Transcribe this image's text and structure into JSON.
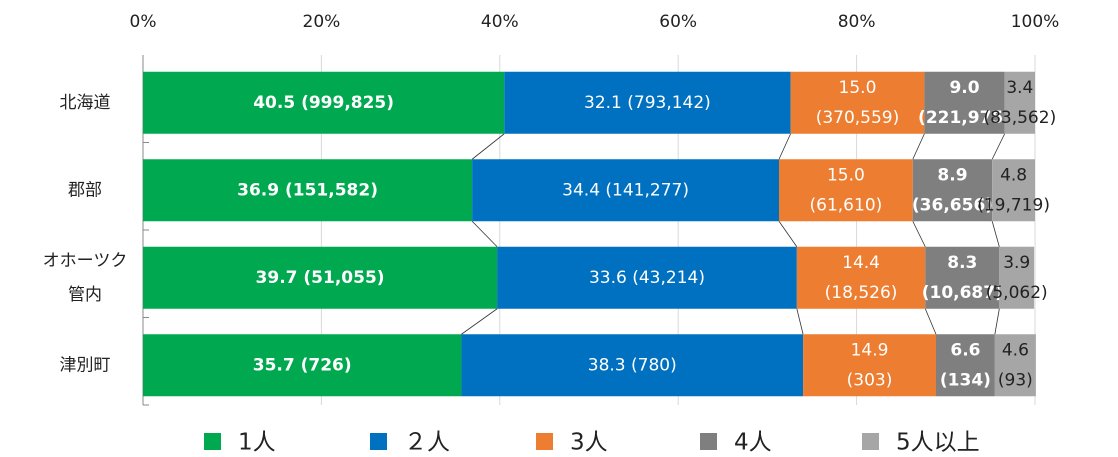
{
  "chart_data": {
    "type": "stacked-bar-horizontal",
    "categories": [
      "北海道",
      "郡部",
      "オホーツク管内",
      "津別町"
    ],
    "series": [
      {
        "name": "1人",
        "color": "#00a94f",
        "values": [
          40.5,
          36.9,
          39.7,
          35.7
        ],
        "value_labels": [
          "40.5 (999,825)",
          "36.9 (151,582)",
          "39.7 (51,055)",
          "35.7 (726)"
        ]
      },
      {
        "name": "２人",
        "color": "#0070c0",
        "values": [
          32.1,
          34.4,
          33.6,
          38.3
        ],
        "value_labels": [
          "32.1 (793,142)",
          "34.4 (141,277)",
          "33.6 (43,214)",
          "38.3 (780)"
        ]
      },
      {
        "name": "3人",
        "color": "#ed7d31",
        "values": [
          15.0,
          15.0,
          14.4,
          14.9
        ],
        "value_labels": [
          "15.0 (370,559)",
          "15.0 (61,610)",
          "14.4 (18,526)",
          "14.9 (303)"
        ]
      },
      {
        "name": "4人",
        "color": "#7f7f7f",
        "values": [
          9.0,
          8.9,
          8.3,
          6.6
        ],
        "value_labels": [
          "9.0 (221,975)",
          "8.9 (36,656)",
          "8.3 (10,687)",
          "6.6 (134)"
        ]
      },
      {
        "name": "5人以上",
        "color": "#a6a6a6",
        "values": [
          3.4,
          4.8,
          3.9,
          4.6
        ],
        "value_labels": [
          "3.4 (83,562)",
          "4.8 (19,719)",
          "3.9 (5,062)",
          "4.6 (93)"
        ]
      }
    ],
    "xlim": [
      0,
      100
    ],
    "xticks": [
      {
        "value": 0,
        "label": "0%"
      },
      {
        "value": 20,
        "label": "20%"
      },
      {
        "value": 40,
        "label": "40%"
      },
      {
        "value": 60,
        "label": "60%"
      },
      {
        "value": 80,
        "label": "80%"
      },
      {
        "value": 100,
        "label": "100%"
      }
    ],
    "grid": true,
    "legend": "bottom"
  }
}
